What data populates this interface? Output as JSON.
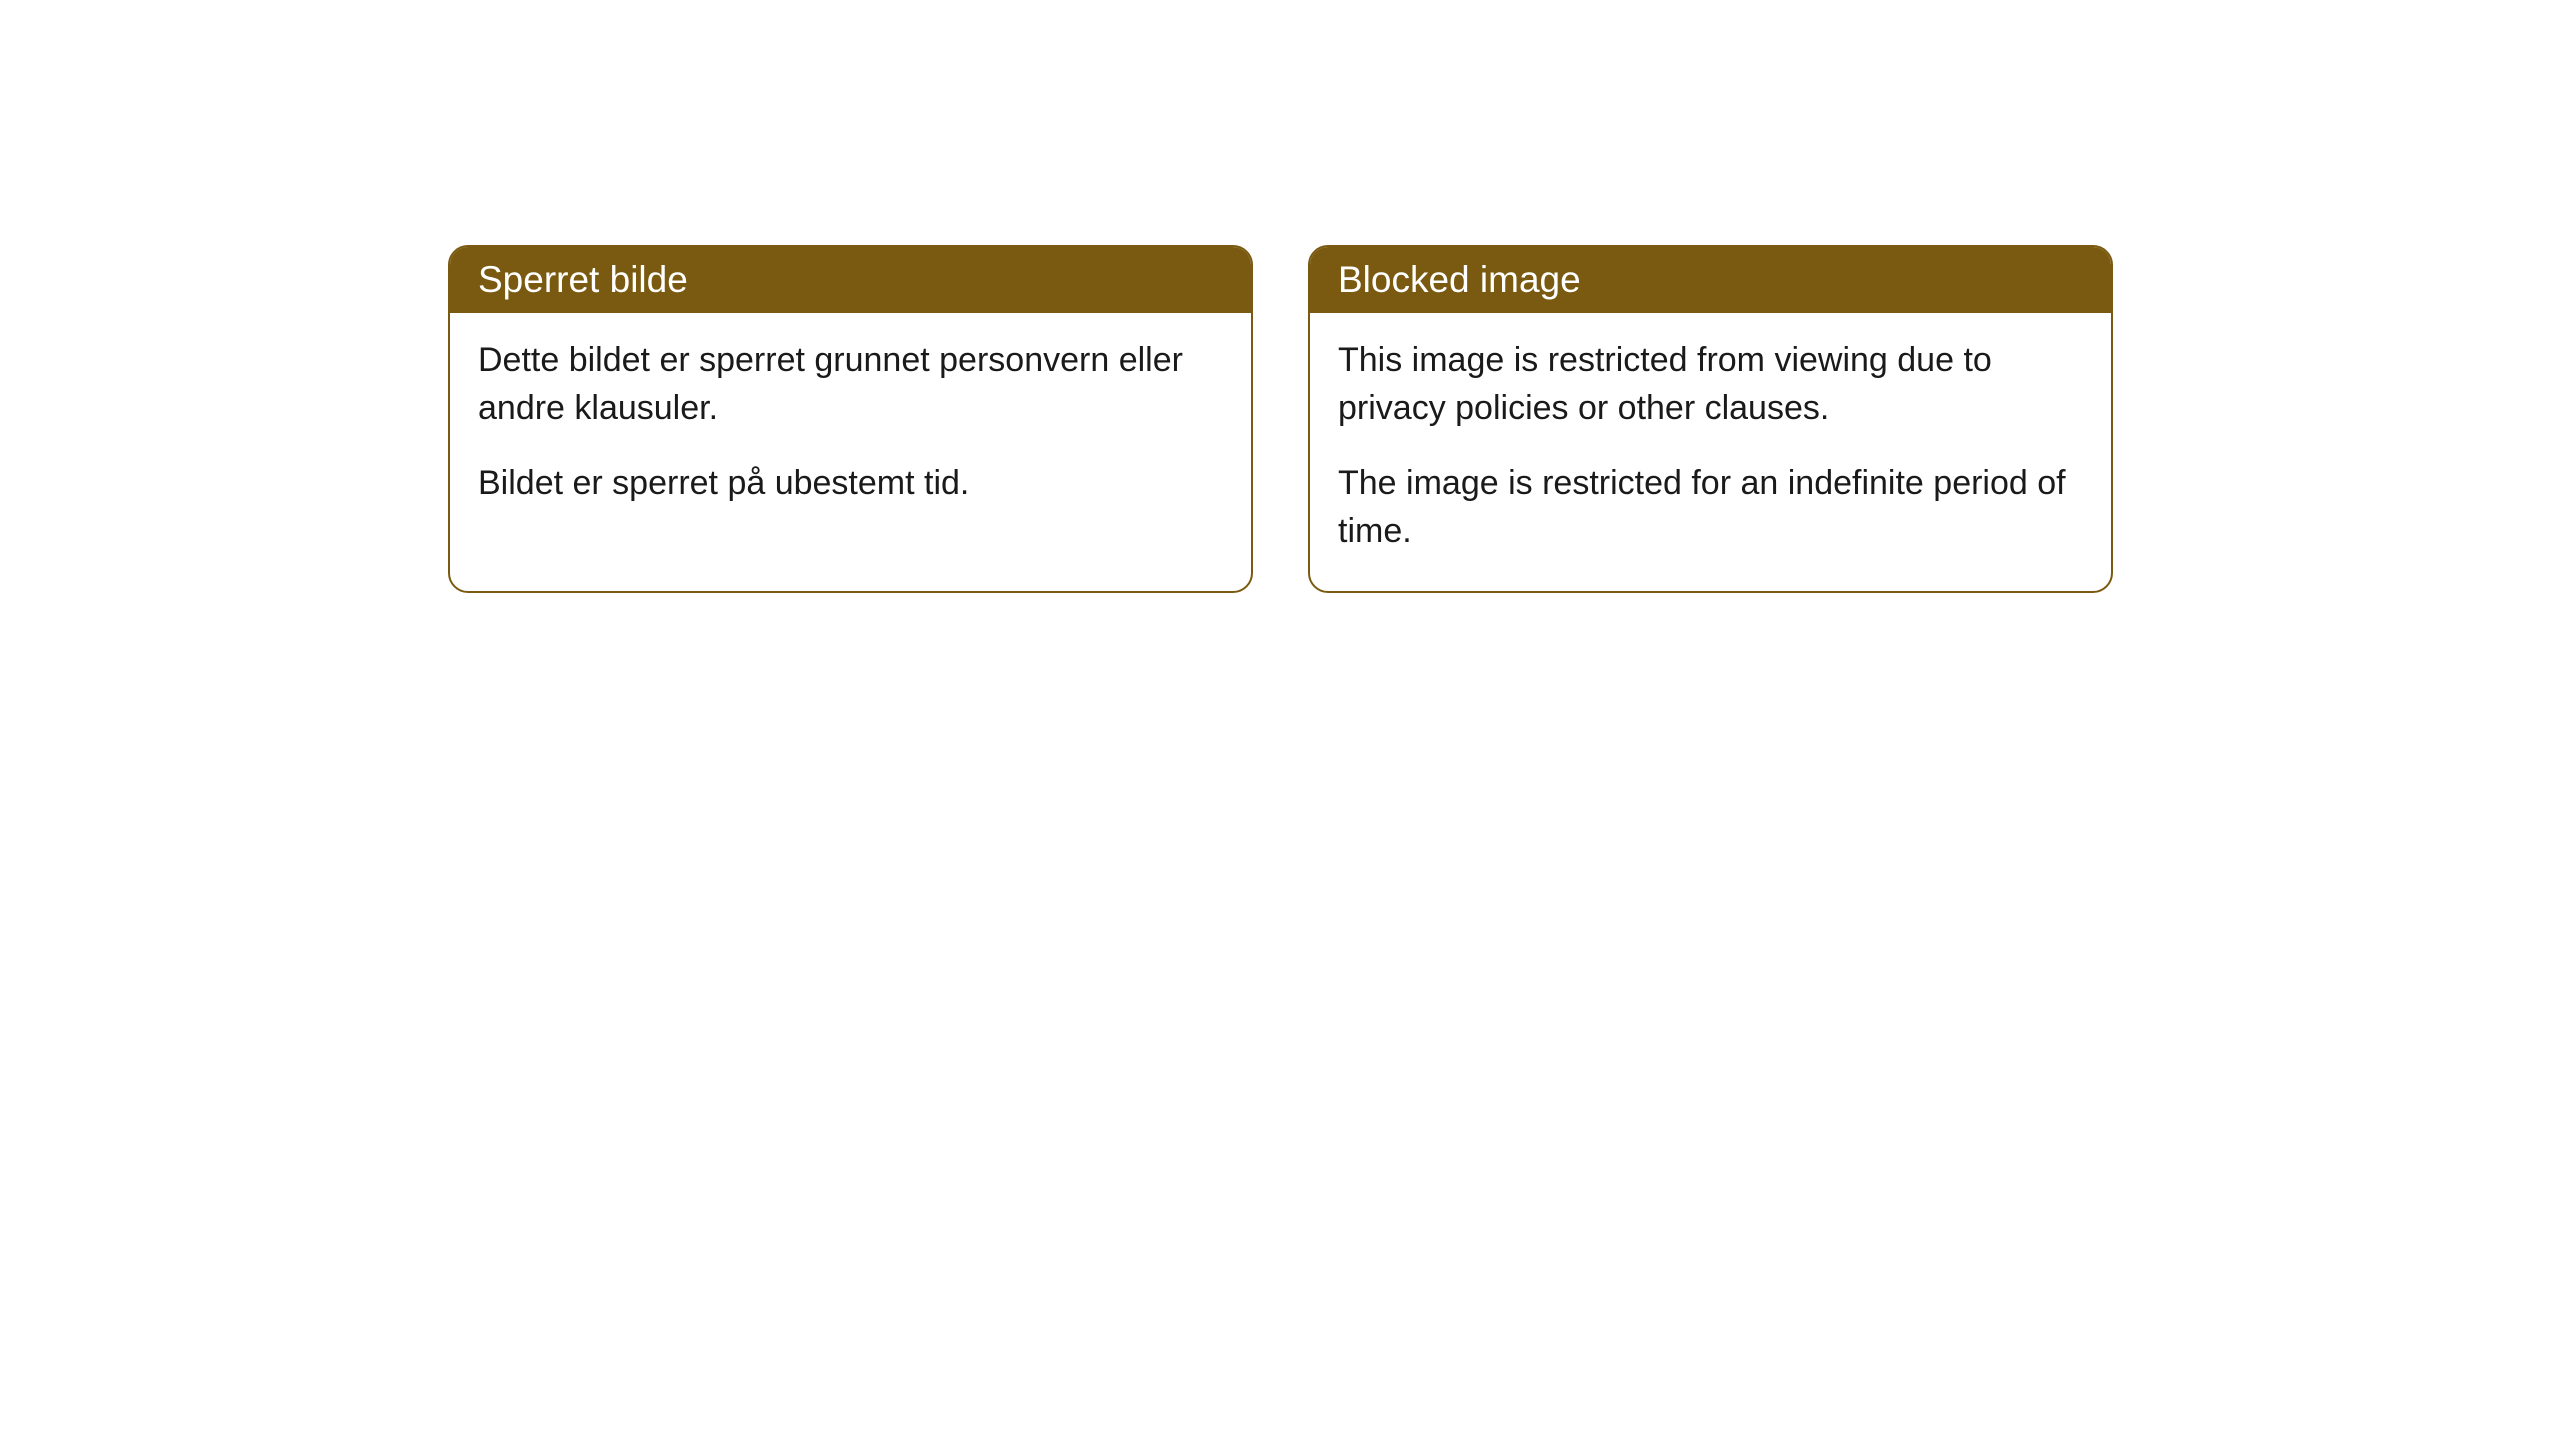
{
  "cards": [
    {
      "title": "Sperret bilde",
      "paragraph1": "Dette bildet er sperret grunnet personvern eller andre klausuler.",
      "paragraph2": "Bildet er sperret på ubestemt tid."
    },
    {
      "title": "Blocked image",
      "paragraph1": "This image is restricted from viewing due to privacy policies or other clauses.",
      "paragraph2": "The image is restricted for an indefinite period of time."
    }
  ],
  "styles": {
    "header_bg_color": "#7a5a10",
    "header_text_color": "#ffffff",
    "border_color": "#7a5a10",
    "body_text_color": "#1a1a1a",
    "background_color": "#ffffff",
    "border_radius": 20,
    "header_fontsize": 37,
    "body_fontsize": 34
  }
}
